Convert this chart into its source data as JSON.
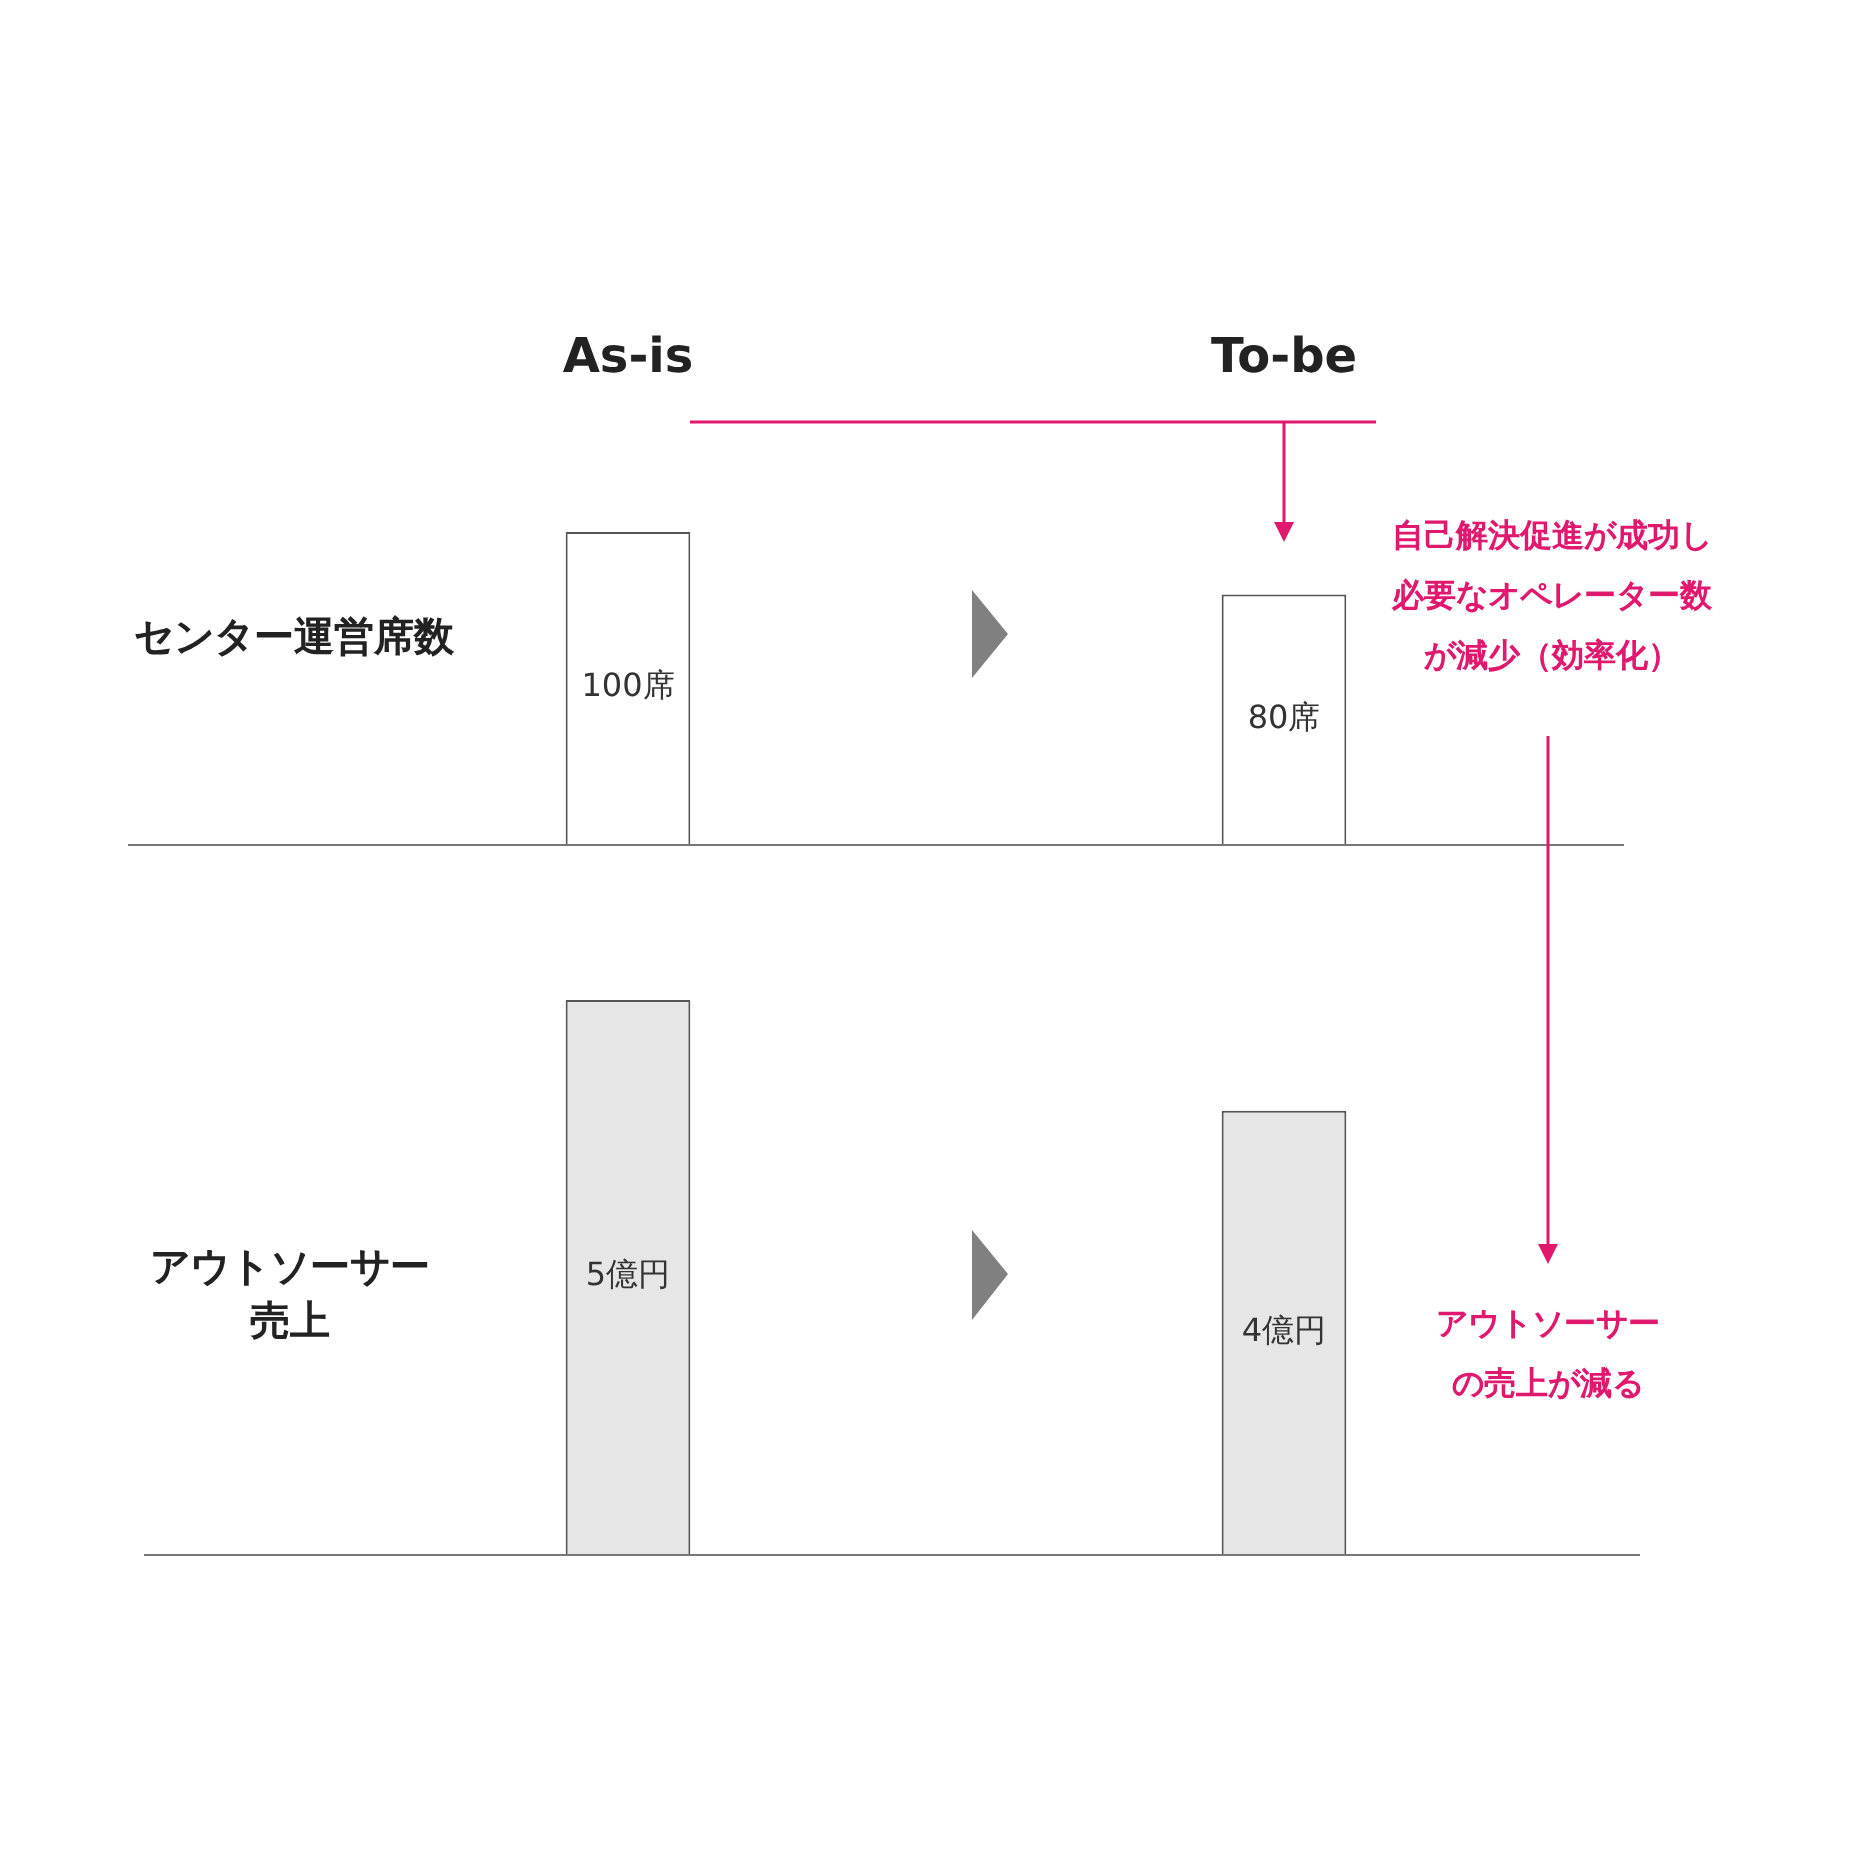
{
  "chart_data": [
    {
      "type": "bar",
      "categories": [
        "As-is",
        "To-be"
      ],
      "ylabel": "センター運営席数",
      "values": [
        100,
        80
      ],
      "value_labels": [
        "100席",
        "80席"
      ],
      "color": "#ffffff",
      "tick_labels": "x",
      "legend": false,
      "grid": false,
      "annotations": [
        "自己解決促進が成功し必要なオペレーター数が減少（効率化）"
      ]
    },
    {
      "type": "bar",
      "categories": [
        null,
        null
      ],
      "ylabel": "アウトソーサー売上",
      "values": [
        5,
        4
      ],
      "value_labels": [
        "5億円",
        "4億円"
      ],
      "color": "#e6e6e6",
      "tick_labels": false,
      "legend": false,
      "grid": false,
      "annotations": [
        "アウトソーサーの売上が減る"
      ]
    }
  ]
}
